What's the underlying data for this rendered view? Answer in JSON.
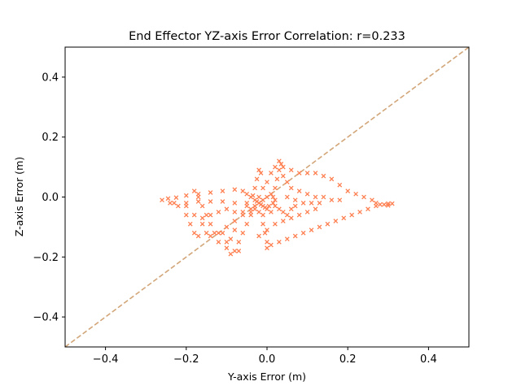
{
  "chart_data": {
    "type": "scatter",
    "title": "End Effector YZ-axis Error Correlation: r=0.233",
    "xlabel": "Y-axis Error (m)",
    "ylabel": "Z-axis Error (m)",
    "xlim": [
      -0.5,
      0.5
    ],
    "ylim": [
      -0.5,
      0.5
    ],
    "xticks": [
      -0.4,
      -0.2,
      0.0,
      0.2,
      0.4
    ],
    "yticks": [
      -0.4,
      -0.2,
      0.0,
      0.2,
      0.4
    ],
    "xtick_labels": [
      "−0.4",
      "−0.2",
      "0.0",
      "0.2",
      "0.4"
    ],
    "ytick_labels": [
      "−0.4",
      "−0.2",
      "0.0",
      "0.2",
      "0.4"
    ],
    "grid": false,
    "reference_line": {
      "style": "dashed",
      "color": "#d2a679",
      "from": [
        -0.5,
        -0.5
      ],
      "to": [
        0.5,
        0.5
      ]
    },
    "marker": "x",
    "marker_color": "#ff7f50",
    "series": [
      {
        "values": [
          [
            -0.26,
            -0.01
          ],
          [
            -0.24,
            -0.02
          ],
          [
            -0.22,
            -0.03
          ],
          [
            -0.2,
            -0.06
          ],
          [
            -0.19,
            -0.09
          ],
          [
            -0.18,
            -0.12
          ],
          [
            -0.17,
            -0.13
          ],
          [
            -0.245,
            -0.005
          ],
          [
            -0.225,
            -0.002
          ],
          [
            -0.2,
            0.005
          ],
          [
            -0.17,
            0.01
          ],
          [
            -0.14,
            0.015
          ],
          [
            -0.11,
            0.02
          ],
          [
            -0.08,
            0.025
          ],
          [
            -0.23,
            -0.02
          ],
          [
            -0.2,
            -0.02
          ],
          [
            -0.17,
            -0.015
          ],
          [
            -0.14,
            -0.015
          ],
          [
            -0.11,
            -0.015
          ],
          [
            -0.08,
            -0.02
          ],
          [
            -0.05,
            -0.02
          ],
          [
            -0.2,
            -0.03
          ],
          [
            -0.18,
            -0.06
          ],
          [
            -0.16,
            -0.09
          ],
          [
            -0.15,
            -0.12
          ],
          [
            -0.18,
            0.02
          ],
          [
            -0.17,
            0.0
          ],
          [
            -0.16,
            -0.03
          ],
          [
            -0.15,
            -0.06
          ],
          [
            -0.14,
            -0.09
          ],
          [
            -0.13,
            -0.12
          ],
          [
            -0.14,
            -0.13
          ],
          [
            -0.12,
            -0.15
          ],
          [
            -0.1,
            -0.17
          ],
          [
            -0.09,
            -0.19
          ],
          [
            -0.08,
            -0.18
          ],
          [
            -0.07,
            -0.15
          ],
          [
            -0.06,
            -0.12
          ],
          [
            -0.05,
            -0.09
          ],
          [
            -0.04,
            -0.06
          ],
          [
            -0.12,
            -0.12
          ],
          [
            -0.1,
            -0.1
          ],
          [
            -0.08,
            -0.08
          ],
          [
            -0.06,
            -0.06
          ],
          [
            -0.04,
            -0.04
          ],
          [
            -0.01,
            -0.06
          ],
          [
            -0.01,
            -0.09
          ],
          [
            -0.005,
            -0.12
          ],
          [
            0.0,
            -0.15
          ],
          [
            0.0,
            -0.17
          ],
          [
            0.01,
            -0.16
          ],
          [
            0.03,
            -0.15
          ],
          [
            0.05,
            -0.14
          ],
          [
            0.07,
            -0.13
          ],
          [
            0.09,
            -0.12
          ],
          [
            0.11,
            -0.11
          ],
          [
            0.13,
            -0.1
          ],
          [
            0.15,
            -0.09
          ],
          [
            0.17,
            -0.08
          ],
          [
            0.19,
            -0.07
          ],
          [
            0.21,
            -0.06
          ],
          [
            0.23,
            -0.05
          ],
          [
            0.25,
            -0.04
          ],
          [
            0.27,
            -0.03
          ],
          [
            0.28,
            -0.025
          ],
          [
            0.29,
            -0.025
          ],
          [
            0.3,
            -0.022
          ],
          [
            0.31,
            -0.022
          ],
          [
            0.3,
            -0.028
          ],
          [
            -0.02,
            -0.13
          ],
          [
            0.0,
            -0.11
          ],
          [
            0.02,
            -0.09
          ],
          [
            0.04,
            -0.08
          ],
          [
            0.06,
            -0.07
          ],
          [
            0.08,
            -0.06
          ],
          [
            0.1,
            -0.05
          ],
          [
            0.12,
            -0.04
          ],
          [
            0.2,
            0.02
          ],
          [
            0.22,
            0.01
          ],
          [
            0.24,
            0.0
          ],
          [
            0.26,
            -0.01
          ],
          [
            0.27,
            -0.02
          ],
          [
            0.18,
            0.04
          ],
          [
            0.16,
            0.06
          ],
          [
            0.14,
            0.07
          ],
          [
            0.12,
            0.08
          ],
          [
            0.1,
            0.08
          ],
          [
            0.08,
            0.08
          ],
          [
            0.06,
            0.09
          ],
          [
            0.04,
            0.1
          ],
          [
            0.02,
            0.1
          ],
          [
            0.01,
            0.08
          ],
          [
            0.0,
            0.05
          ],
          [
            -0.01,
            0.03
          ],
          [
            -0.015,
            0.08
          ],
          [
            -0.02,
            0.09
          ],
          [
            -0.025,
            0.06
          ],
          [
            -0.03,
            0.03
          ],
          [
            0.03,
            0.12
          ],
          [
            0.035,
            0.11
          ],
          [
            0.03,
            0.09
          ],
          [
            0.025,
            0.06
          ],
          [
            0.02,
            0.03
          ],
          [
            0.015,
            0.0
          ],
          [
            0.04,
            0.07
          ],
          [
            0.05,
            0.05
          ],
          [
            0.06,
            0.03
          ],
          [
            0.08,
            0.02
          ],
          [
            0.1,
            0.01
          ],
          [
            0.12,
            0.0
          ],
          [
            0.14,
            0.0
          ],
          [
            0.16,
            -0.01
          ],
          [
            0.18,
            -0.01
          ],
          [
            0.05,
            0.0
          ],
          [
            0.07,
            -0.01
          ],
          [
            0.09,
            -0.02
          ],
          [
            0.11,
            -0.02
          ],
          [
            0.13,
            -0.02
          ],
          [
            -0.06,
            0.02
          ],
          [
            -0.05,
            0.01
          ],
          [
            -0.04,
            0.0
          ],
          [
            -0.03,
            -0.01
          ],
          [
            -0.02,
            -0.02
          ],
          [
            -0.01,
            -0.03
          ],
          [
            0.0,
            -0.04
          ],
          [
            0.01,
            -0.05
          ],
          [
            -0.05,
            -0.03
          ],
          [
            -0.04,
            -0.05
          ],
          [
            -0.03,
            -0.04
          ],
          [
            -0.02,
            -0.05
          ],
          [
            -0.01,
            -0.01
          ],
          [
            0.0,
            0.0
          ],
          [
            0.01,
            0.01
          ],
          [
            0.02,
            -0.01
          ],
          [
            -0.035,
            0.005
          ],
          [
            -0.025,
            -0.015
          ],
          [
            -0.015,
            -0.025
          ],
          [
            -0.005,
            -0.035
          ],
          [
            0.005,
            -0.03
          ],
          [
            0.015,
            -0.02
          ],
          [
            -0.03,
            -0.03
          ],
          [
            -0.02,
            0.0
          ],
          [
            0.02,
            -0.03
          ],
          [
            0.03,
            -0.04
          ],
          [
            0.04,
            -0.05
          ],
          [
            0.05,
            -0.06
          ],
          [
            0.06,
            -0.04
          ],
          [
            0.07,
            -0.03
          ],
          [
            -0.1,
            -0.04
          ],
          [
            -0.08,
            -0.05
          ],
          [
            -0.06,
            -0.05
          ],
          [
            -0.12,
            -0.05
          ],
          [
            -0.14,
            -0.06
          ],
          [
            -0.16,
            -0.07
          ],
          [
            -0.11,
            -0.12
          ],
          [
            -0.1,
            -0.15
          ],
          [
            -0.07,
            -0.18
          ],
          [
            -0.09,
            -0.14
          ],
          [
            -0.08,
            -0.11
          ]
        ]
      }
    ]
  }
}
